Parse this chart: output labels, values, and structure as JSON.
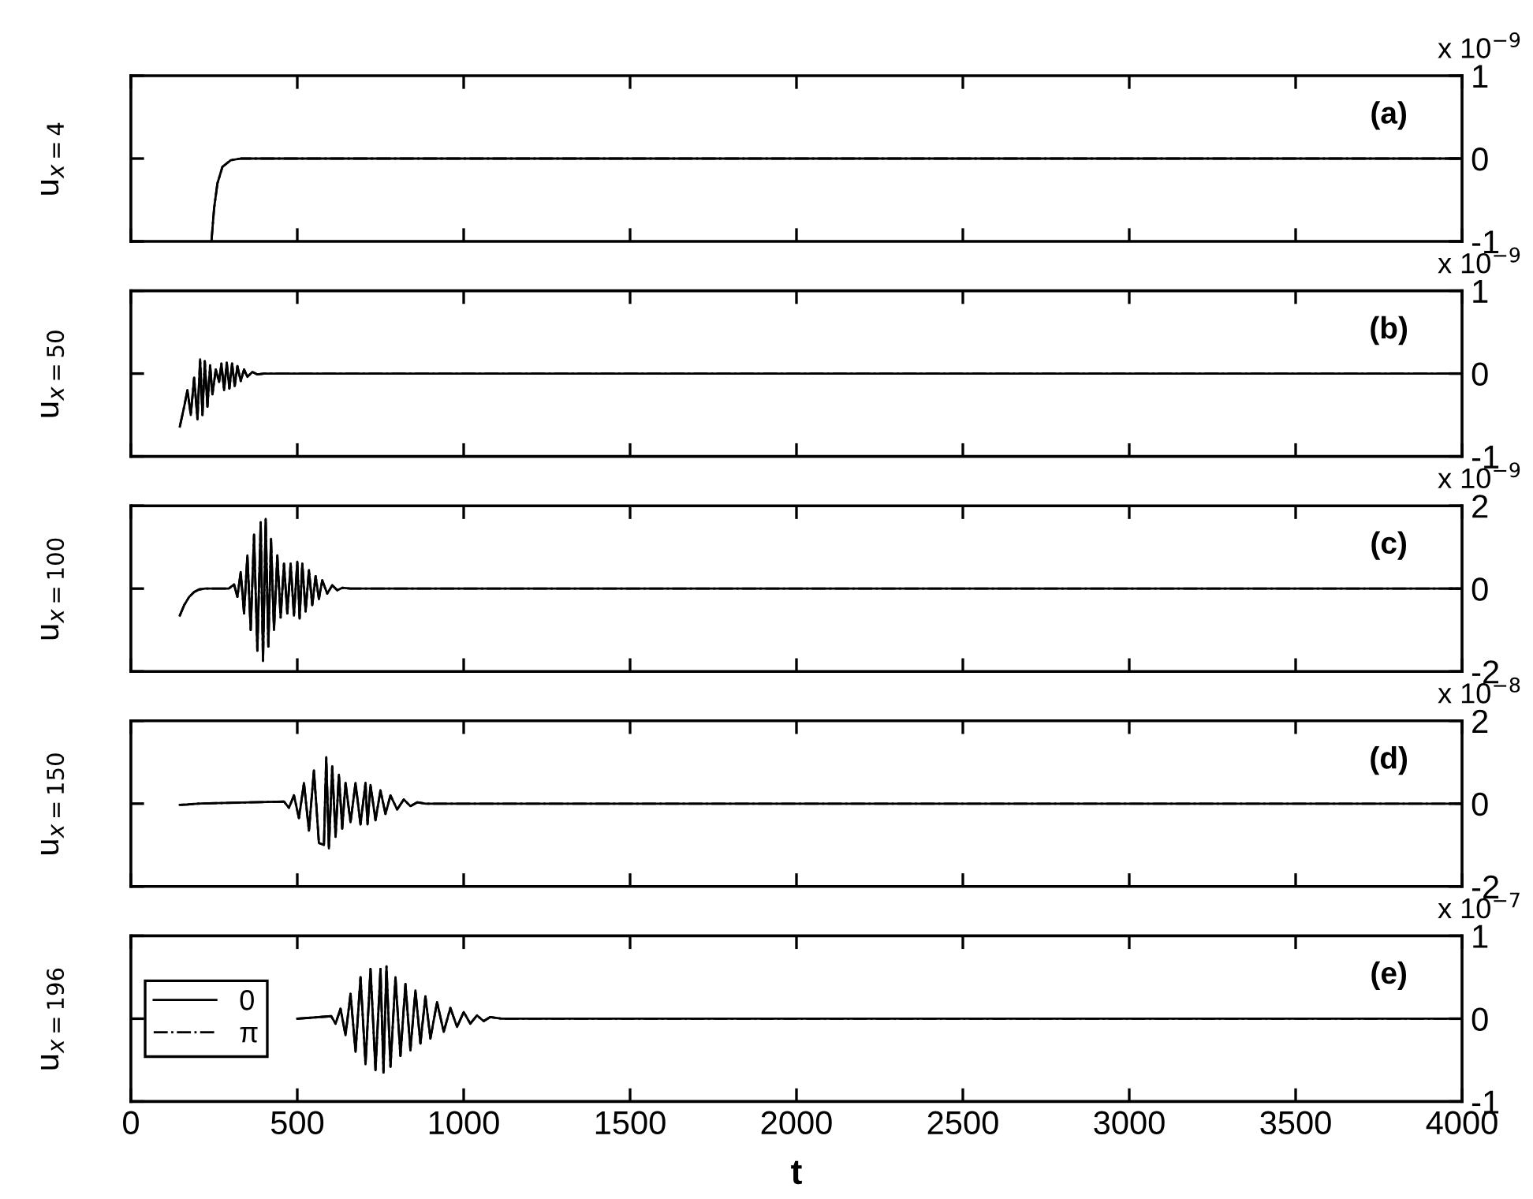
{
  "chart_data": [
    {
      "type": "line",
      "ylabel": "u$_{x=4}$",
      "annotations": [
        "(a)",
        "x 10$^{−9}$"
      ],
      "xlim": [
        0,
        4000
      ],
      "xticks": [
        0,
        500,
        1000,
        1500,
        2000,
        2500,
        3000,
        3500,
        4000
      ],
      "ylim": [
        -1,
        1
      ],
      "yticks": [
        -1,
        0,
        1
      ],
      "tick_labels": "y",
      "grid": false,
      "legend": false,
      "series": [
        {
          "color": "#000000",
          "line_style": "solid",
          "x": [
            242,
            250,
            260,
            275,
            300,
            330,
            4000
          ],
          "values": [
            -1,
            -0.6,
            -0.3,
            -0.1,
            -0.02,
            0,
            0
          ]
        },
        {
          "color": "#000000",
          "line_style": "dashdot",
          "x": [
            242,
            250,
            260,
            275,
            300,
            330,
            4000
          ],
          "values": [
            -1,
            -0.6,
            -0.3,
            -0.1,
            -0.02,
            0,
            0
          ]
        }
      ]
    },
    {
      "type": "line",
      "ylabel": "u$_{x=50}$",
      "annotations": [
        "(b)",
        "x 10$^{−9}$"
      ],
      "xlim": [
        0,
        4000
      ],
      "xticks": [
        0,
        500,
        1000,
        1500,
        2000,
        2500,
        3000,
        3500,
        4000
      ],
      "ylim": [
        -1,
        1
      ],
      "yticks": [
        -1,
        0,
        1
      ],
      "tick_labels": "y",
      "grid": false,
      "legend": false,
      "series": [
        {
          "color": "#000000",
          "line_style": "solid",
          "x": [
            147,
            160,
            170,
            180,
            190,
            200,
            208,
            215,
            222,
            230,
            238,
            245,
            255,
            265,
            272,
            280,
            288,
            296,
            304,
            312,
            320,
            330,
            340,
            350,
            365,
            380,
            400,
            4000
          ],
          "values": [
            -0.64,
            -0.4,
            -0.2,
            -0.5,
            -0.05,
            -0.55,
            0.17,
            -0.5,
            0.15,
            -0.4,
            0.1,
            -0.25,
            0.05,
            -0.1,
            0.12,
            -0.2,
            0.13,
            -0.18,
            0.12,
            -0.15,
            0.09,
            -0.09,
            0.05,
            -0.04,
            0.02,
            -0.01,
            0,
            0
          ]
        },
        {
          "color": "#000000",
          "line_style": "dashdot",
          "x": [
            147,
            160,
            170,
            180,
            190,
            200,
            208,
            215,
            222,
            230,
            238,
            245,
            255,
            265,
            272,
            280,
            288,
            296,
            304,
            312,
            320,
            330,
            340,
            350,
            365,
            380,
            400,
            4000
          ],
          "values": [
            -0.64,
            -0.4,
            -0.2,
            -0.5,
            -0.05,
            -0.55,
            0.17,
            -0.5,
            0.15,
            -0.4,
            0.1,
            -0.25,
            0.05,
            -0.1,
            0.12,
            -0.2,
            0.13,
            -0.18,
            0.12,
            -0.15,
            0.09,
            -0.09,
            0.05,
            -0.04,
            0.02,
            -0.01,
            0,
            0
          ]
        }
      ]
    },
    {
      "type": "line",
      "ylabel": "u$_{x=100}$",
      "annotations": [
        "(c)",
        "x 10$^{−9}$"
      ],
      "xlim": [
        0,
        4000
      ],
      "xticks": [
        0,
        500,
        1000,
        1500,
        2000,
        2500,
        3000,
        3500,
        4000
      ],
      "ylim": [
        -2,
        2
      ],
      "yticks": [
        -2,
        0,
        2
      ],
      "tick_labels": "y",
      "grid": false,
      "legend": false,
      "series": [
        {
          "color": "#000000",
          "line_style": "solid",
          "x": [
            147,
            160,
            175,
            190,
            205,
            223,
            260,
            294,
            310,
            320,
            330,
            340,
            350,
            360,
            370,
            380,
            390,
            397,
            405,
            413,
            421,
            430,
            440,
            450,
            460,
            470,
            480,
            490,
            500,
            507,
            515,
            525,
            535,
            545,
            555,
            565,
            575,
            590,
            605,
            620,
            635,
            660,
            683,
            4000
          ],
          "values": [
            -0.65,
            -0.4,
            -0.2,
            -0.08,
            -0.02,
            0,
            0,
            0,
            0.1,
            -0.2,
            0.4,
            -0.6,
            0.8,
            -1.0,
            1.3,
            -1.5,
            1.6,
            -1.75,
            1.68,
            -1.4,
            1.2,
            -1.0,
            0.8,
            -0.7,
            0.6,
            -0.6,
            0.6,
            -0.65,
            0.65,
            -0.72,
            0.6,
            -0.55,
            0.45,
            -0.4,
            0.3,
            -0.25,
            0.2,
            -0.12,
            0.08,
            -0.04,
            0.02,
            0,
            0,
            0
          ]
        },
        {
          "color": "#000000",
          "line_style": "dashdot",
          "x": [
            147,
            160,
            175,
            190,
            205,
            223,
            260,
            294,
            310,
            320,
            330,
            340,
            350,
            360,
            370,
            380,
            390,
            397,
            405,
            413,
            421,
            430,
            440,
            450,
            460,
            470,
            480,
            490,
            500,
            507,
            515,
            525,
            535,
            545,
            555,
            565,
            575,
            590,
            605,
            620,
            635,
            660,
            683,
            4000
          ],
          "values": [
            -0.65,
            -0.4,
            -0.2,
            -0.08,
            -0.02,
            0,
            0,
            0,
            0.1,
            -0.2,
            0.4,
            -0.6,
            0.8,
            -1.0,
            1.3,
            -1.5,
            1.6,
            -1.75,
            1.68,
            -1.4,
            1.2,
            -1.0,
            0.8,
            -0.7,
            0.6,
            -0.6,
            0.6,
            -0.65,
            0.65,
            -0.72,
            0.6,
            -0.55,
            0.45,
            -0.4,
            0.3,
            -0.25,
            0.2,
            -0.12,
            0.08,
            -0.04,
            0.02,
            0,
            0,
            0
          ]
        }
      ]
    },
    {
      "type": "line",
      "ylabel": "u$_{x=150}$",
      "annotations": [
        "(d)",
        "x 10$^{−8}$"
      ],
      "xlim": [
        0,
        4000
      ],
      "xticks": [
        0,
        500,
        1000,
        1500,
        2000,
        2500,
        3000,
        3500,
        4000
      ],
      "ylim": [
        -2,
        2
      ],
      "yticks": [
        -2,
        0,
        2
      ],
      "tick_labels": "y",
      "grid": false,
      "legend": false,
      "series": [
        {
          "color": "#000000",
          "line_style": "solid",
          "x": [
            147,
            170,
            200,
            460,
            475,
            490,
            505,
            520,
            535,
            550,
            565,
            580,
            587,
            595,
            605,
            615,
            625,
            635,
            645,
            660,
            675,
            690,
            705,
            711,
            720,
            735,
            750,
            765,
            780,
            800,
            820,
            840,
            860,
            886,
            4000
          ],
          "values": [
            -0.03,
            -0.02,
            0,
            0.05,
            -0.1,
            0.2,
            -0.35,
            0.5,
            -0.65,
            0.8,
            -0.95,
            -1.0,
            1.12,
            -1.08,
            0.9,
            -0.8,
            0.7,
            -0.6,
            0.5,
            -0.45,
            0.5,
            -0.5,
            0.5,
            -0.5,
            0.45,
            -0.4,
            0.32,
            -0.25,
            0.2,
            -0.14,
            0.1,
            -0.06,
            0.03,
            0,
            0
          ]
        },
        {
          "color": "#000000",
          "line_style": "dashdot",
          "x": [
            147,
            170,
            200,
            460,
            475,
            490,
            505,
            520,
            535,
            550,
            565,
            580,
            587,
            595,
            605,
            615,
            625,
            635,
            645,
            660,
            675,
            690,
            705,
            711,
            720,
            735,
            750,
            765,
            780,
            800,
            820,
            840,
            860,
            886,
            4000
          ],
          "values": [
            -0.03,
            -0.02,
            0,
            0.05,
            -0.1,
            0.2,
            -0.35,
            0.5,
            -0.65,
            0.8,
            -0.95,
            -1.0,
            1.12,
            -1.08,
            0.9,
            -0.8,
            0.7,
            -0.6,
            0.5,
            -0.45,
            0.5,
            -0.5,
            0.5,
            -0.5,
            0.45,
            -0.4,
            0.32,
            -0.25,
            0.2,
            -0.14,
            0.1,
            -0.06,
            0.03,
            0,
            0
          ]
        }
      ]
    },
    {
      "type": "line",
      "ylabel": "u$_{x=196}$",
      "xlabel": "t",
      "annotations": [
        "(e)",
        "x 10$^{−7}$"
      ],
      "xlim": [
        0,
        4000
      ],
      "xticks": [
        0,
        500,
        1000,
        1500,
        2000,
        2500,
        3000,
        3500,
        4000
      ],
      "ylim": [
        -1,
        1
      ],
      "yticks": [
        -1,
        0,
        1
      ],
      "grid": false,
      "legend": "left",
      "series": [
        {
          "name": "0",
          "color": "#000000",
          "line_style": "solid",
          "x": [
            500,
            602,
            615,
            630,
            645,
            660,
            675,
            690,
            705,
            720,
            735,
            750,
            759,
            768,
            780,
            795,
            810,
            825,
            840,
            855,
            870,
            885,
            900,
            920,
            940,
            960,
            980,
            1000,
            1020,
            1040,
            1060,
            1080,
            1114,
            4000
          ],
          "values": [
            0,
            0.03,
            -0.06,
            0.12,
            -0.2,
            0.3,
            -0.4,
            0.5,
            -0.55,
            0.6,
            -0.62,
            0.6,
            -0.65,
            0.63,
            -0.58,
            0.5,
            -0.45,
            0.42,
            -0.38,
            0.34,
            -0.3,
            0.27,
            -0.24,
            0.2,
            -0.16,
            0.13,
            -0.1,
            0.08,
            -0.06,
            0.04,
            -0.03,
            0.02,
            0,
            0
          ]
        },
        {
          "name": "π",
          "color": "#000000",
          "line_style": "dashdot",
          "x": [
            500,
            602,
            615,
            630,
            645,
            660,
            675,
            690,
            705,
            720,
            735,
            750,
            759,
            768,
            780,
            795,
            810,
            825,
            840,
            855,
            870,
            885,
            900,
            920,
            940,
            960,
            980,
            1000,
            1020,
            1040,
            1060,
            1080,
            1114,
            4000
          ],
          "values": [
            0,
            0.03,
            -0.06,
            0.12,
            -0.2,
            0.3,
            -0.4,
            0.5,
            -0.55,
            0.6,
            -0.62,
            0.6,
            -0.65,
            0.63,
            -0.58,
            0.5,
            -0.45,
            0.42,
            -0.38,
            0.34,
            -0.3,
            0.27,
            -0.24,
            0.2,
            -0.16,
            0.13,
            -0.1,
            0.08,
            -0.06,
            0.04,
            -0.03,
            0.02,
            0,
            0
          ]
        }
      ]
    }
  ]
}
